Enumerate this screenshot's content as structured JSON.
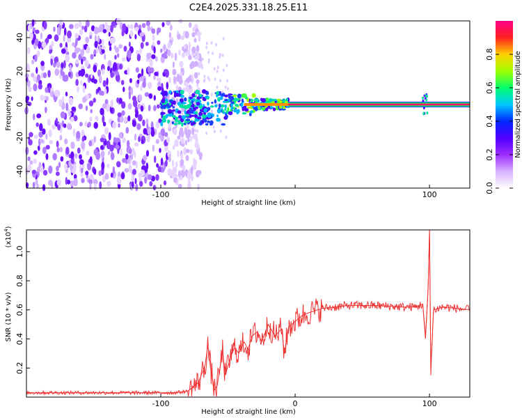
{
  "title": "C2E4.2025.331.18.25.E11",
  "chart_data": [
    {
      "type": "heatmap",
      "name": "spectrogram",
      "xlabel": "Height of straight line (km)",
      "ylabel": "Frequency (Hz)",
      "xlim": [
        -200,
        130
      ],
      "ylim": [
        -50,
        50
      ],
      "xticks": [
        -100,
        0,
        100
      ],
      "xtick_labels": [
        "-100",
        "",
        "100"
      ],
      "yticks": [
        -40,
        -20,
        0,
        20,
        40
      ],
      "ytick_labels": [
        "-40",
        "-20",
        "0",
        "20",
        "40"
      ],
      "signal_line": {
        "frequency": 0,
        "x_start": -5,
        "x_end": 130
      },
      "noise_region_x": [
        -200,
        -80
      ],
      "colorbar": {
        "label": "Normalized spectral amplitude",
        "range": [
          0,
          1
        ],
        "ticks": [
          0.0,
          0.2,
          0.4,
          0.6,
          0.8
        ],
        "tick_labels": [
          "0.0",
          "0.2",
          "0.4",
          "0.6",
          "0.8"
        ],
        "colors": [
          "#ffffff",
          "#d9b0ff",
          "#9c2cff",
          "#5000ff",
          "#0028ff",
          "#00c8ff",
          "#00ff6a",
          "#a0ff00",
          "#ffd000",
          "#ff2020",
          "#ff0088"
        ]
      }
    },
    {
      "type": "line",
      "name": "snr",
      "xlabel": "Height of straight line (km)",
      "ylabel": "SNR (10 * v/v)",
      "y_multiplier": "(x10",
      "y_multiplier_exp": "4",
      "y_multiplier_close": ")",
      "xlim": [
        -200,
        130
      ],
      "ylim": [
        0,
        1.15
      ],
      "xticks": [
        -100,
        0,
        100
      ],
      "xtick_labels": [
        "-100",
        "0",
        "100"
      ],
      "yticks": [
        0.2,
        0.4,
        0.6,
        0.8,
        1.0
      ],
      "ytick_labels": [
        "0.2",
        "0.4",
        "0.6",
        "0.8",
        "1.0"
      ],
      "color": "#ee3333",
      "series": [
        {
          "name": "SNR",
          "x": [
            -200,
            -90,
            -80,
            -72,
            -67,
            -65,
            -63,
            -60,
            -58,
            -56,
            -54,
            -52,
            -48,
            -45,
            -42,
            -38,
            -35,
            -32,
            -28,
            -25,
            -20,
            -15,
            -10,
            -8,
            -5,
            0,
            5,
            10,
            20,
            30,
            40,
            60,
            80,
            90,
            95,
            97,
            99,
            100,
            101,
            103,
            110,
            130
          ],
          "y": [
            0.03,
            0.03,
            0.04,
            0.1,
            0.22,
            0.36,
            0.2,
            0.05,
            0.08,
            0.2,
            0.32,
            0.15,
            0.28,
            0.34,
            0.3,
            0.38,
            0.33,
            0.42,
            0.45,
            0.38,
            0.5,
            0.42,
            0.47,
            0.3,
            0.48,
            0.52,
            0.56,
            0.58,
            0.61,
            0.62,
            0.63,
            0.63,
            0.62,
            0.62,
            0.64,
            0.4,
            0.75,
            1.15,
            0.18,
            0.6,
            0.62,
            0.6
          ]
        }
      ]
    }
  ]
}
